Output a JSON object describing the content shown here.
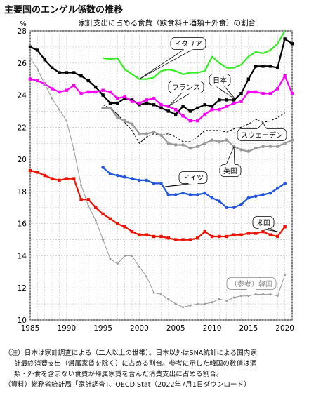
{
  "page_title": "主要国のエンゲル係数の推移",
  "chart_data": {
    "type": "line",
    "title": "家計支出に占める食費（飲食料＋酒類＋外食）の割合",
    "ylabel": "%",
    "xlim": [
      1985,
      2021
    ],
    "ylim": [
      10,
      28
    ],
    "xticks": [
      1985,
      1990,
      1995,
      2000,
      2005,
      2010,
      2015,
      2020
    ],
    "yticks": [
      10,
      12,
      14,
      16,
      18,
      20,
      22,
      24,
      26,
      28
    ],
    "grid": true,
    "colors": {
      "italy": "#33ee22",
      "japan": "#000000",
      "france": "#ff00ff",
      "sweden": "#000000",
      "uk": "#999999",
      "germany": "#2255dd",
      "usa": "#ee1100",
      "korea": "#9a9a9a"
    },
    "series": [
      {
        "key": "italy",
        "name": "イタリア",
        "color": "#33ee22",
        "style": "solid",
        "width": 2.2,
        "x": [
          1995,
          1996,
          1997,
          1998,
          1999,
          2000,
          2001,
          2002,
          2003,
          2004,
          2005,
          2006,
          2007,
          2008,
          2009,
          2010,
          2011,
          2012,
          2013,
          2014,
          2015,
          2016,
          2017,
          2018,
          2019,
          2020
        ],
        "y": [
          26.3,
          26.25,
          26.3,
          25.6,
          25.3,
          25.0,
          25.0,
          25.1,
          25.5,
          25.6,
          25.5,
          25.3,
          25.4,
          25.4,
          25.5,
          26.4,
          26.0,
          25.7,
          25.7,
          25.9,
          26.4,
          26.7,
          26.6,
          26.8,
          27.2,
          28.0
        ]
      },
      {
        "key": "japan",
        "name": "日本",
        "color": "#000000",
        "style": "solid",
        "width": 2.2,
        "marker": "square",
        "x": [
          1985,
          1986,
          1987,
          1988,
          1989,
          1990,
          1991,
          1992,
          1993,
          1994,
          1995,
          1996,
          1997,
          1998,
          1999,
          2000,
          2001,
          2002,
          2003,
          2004,
          2005,
          2006,
          2007,
          2008,
          2009,
          2010,
          2011,
          2012,
          2013,
          2014,
          2015,
          2016,
          2017,
          2018,
          2019,
          2020,
          2021
        ],
        "y": [
          27.0,
          26.8,
          26.2,
          25.7,
          25.4,
          25.4,
          25.4,
          25.2,
          24.9,
          24.5,
          24.0,
          23.5,
          23.5,
          23.8,
          23.7,
          23.4,
          23.5,
          23.4,
          23.2,
          23.0,
          22.8,
          23.3,
          23.0,
          23.2,
          23.4,
          23.3,
          23.7,
          23.7,
          23.7,
          24.1,
          25.0,
          25.8,
          25.8,
          25.8,
          25.7,
          27.5,
          27.2
        ]
      },
      {
        "key": "france",
        "name": "フランス",
        "color": "#ff00ff",
        "style": "solid",
        "width": 2.2,
        "marker": "square",
        "x": [
          1985,
          1986,
          1987,
          1988,
          1989,
          1990,
          1991,
          1992,
          1993,
          1994,
          1995,
          1996,
          1997,
          1998,
          1999,
          2000,
          2001,
          2002,
          2003,
          2004,
          2005,
          2006,
          2007,
          2008,
          2009,
          2010,
          2011,
          2012,
          2013,
          2014,
          2015,
          2016,
          2017,
          2018,
          2019,
          2020,
          2021
        ],
        "y": [
          25.0,
          24.9,
          24.7,
          24.4,
          24.2,
          24.3,
          24.6,
          24.1,
          24.2,
          24.2,
          24.3,
          24.2,
          23.8,
          23.9,
          23.6,
          23.5,
          23.7,
          23.8,
          23.4,
          23.3,
          23.1,
          22.7,
          22.4,
          22.4,
          22.8,
          23.1,
          23.1,
          23.3,
          23.5,
          23.6,
          24.2,
          24.2,
          24.1,
          24.1,
          24.4,
          25.2,
          24.1
        ]
      },
      {
        "key": "sweden",
        "name": "スウェーデン",
        "color": "#000000",
        "style": "dashed",
        "width": 1.0,
        "x": [
          1995,
          1996,
          1997,
          1998,
          1999,
          2000,
          2001,
          2002,
          2003,
          2004,
          2005,
          2006,
          2007,
          2008,
          2009,
          2010,
          2011,
          2012,
          2013,
          2014,
          2015,
          2016,
          2017,
          2018,
          2019,
          2020
        ],
        "y": [
          23.4,
          23.2,
          22.8,
          22.3,
          21.8,
          21.0,
          21.4,
          21.6,
          21.5,
          21.6,
          21.4,
          21.1,
          21.1,
          21.4,
          21.8,
          21.8,
          21.8,
          21.7,
          21.9,
          22.0,
          22.2,
          22.5,
          22.3,
          22.4,
          22.6,
          22.9
        ]
      },
      {
        "key": "uk",
        "name": "英国",
        "color": "#999999",
        "style": "solid",
        "width": 2.2,
        "marker": "dot",
        "x": [
          1995,
          1996,
          1997,
          1998,
          1999,
          2000,
          2001,
          2002,
          2003,
          2004,
          2005,
          2006,
          2007,
          2008,
          2009,
          2010,
          2011,
          2012,
          2013,
          2014,
          2015,
          2016,
          2017,
          2018,
          2019,
          2020,
          2021
        ],
        "y": [
          23.2,
          23.2,
          22.6,
          22.4,
          22.2,
          21.6,
          21.6,
          21.7,
          21.5,
          21.0,
          20.9,
          20.9,
          20.7,
          20.8,
          21.0,
          21.2,
          21.1,
          21.2,
          20.8,
          20.6,
          20.5,
          20.7,
          20.8,
          20.8,
          20.8,
          21.0,
          21.2
        ]
      },
      {
        "key": "germany",
        "name": "ドイツ",
        "color": "#2255dd",
        "style": "solid",
        "width": 2.2,
        "marker": "dot",
        "x": [
          1995,
          1996,
          1997,
          1998,
          1999,
          2000,
          2001,
          2002,
          2003,
          2004,
          2005,
          2006,
          2007,
          2008,
          2009,
          2010,
          2011,
          2012,
          2013,
          2014,
          2015,
          2016,
          2017,
          2018,
          2019,
          2020
        ],
        "y": [
          19.5,
          19.1,
          19.0,
          18.9,
          18.8,
          18.7,
          18.7,
          18.5,
          18.5,
          17.8,
          17.8,
          17.9,
          17.8,
          17.8,
          17.9,
          17.6,
          17.4,
          17.0,
          17.0,
          17.2,
          17.6,
          17.7,
          17.8,
          17.9,
          18.2,
          18.5
        ]
      },
      {
        "key": "usa",
        "name": "米国",
        "color": "#ee1100",
        "style": "solid",
        "width": 2.2,
        "marker": "square",
        "x": [
          1985,
          1986,
          1987,
          1988,
          1989,
          1990,
          1991,
          1992,
          1993,
          1994,
          1995,
          1996,
          1997,
          1998,
          1999,
          2000,
          2001,
          2002,
          2003,
          2004,
          2005,
          2006,
          2007,
          2008,
          2009,
          2010,
          2011,
          2012,
          2013,
          2014,
          2015,
          2016,
          2017,
          2018,
          2019,
          2020
        ],
        "y": [
          19.3,
          19.2,
          19.0,
          18.8,
          18.7,
          18.8,
          18.8,
          17.5,
          17.5,
          17.0,
          16.6,
          16.3,
          16.0,
          15.8,
          15.5,
          15.3,
          15.3,
          15.2,
          15.2,
          15.1,
          15.0,
          15.0,
          15.0,
          15.1,
          15.5,
          15.2,
          15.2,
          15.2,
          15.3,
          15.3,
          15.4,
          15.4,
          15.5,
          15.3,
          15.2,
          15.8
        ]
      },
      {
        "key": "korea",
        "name": "（参考）韓国",
        "color": "#9a9a9a",
        "style": "solid",
        "width": 1.0,
        "marker": "dot",
        "x": [
          1985,
          1986,
          1987,
          1988,
          1989,
          1990,
          1991,
          1992,
          1993,
          1994,
          1995,
          1996,
          1997,
          1998,
          1999,
          2000,
          2001,
          2002,
          2003,
          2004,
          2005,
          2006,
          2007,
          2008,
          2009,
          2010,
          2011,
          2012,
          2013,
          2014,
          2015,
          2016,
          2017,
          2018,
          2019,
          2020
        ],
        "y": [
          26.3,
          25.6,
          24.7,
          23.8,
          23.1,
          22.4,
          20.6,
          18.4,
          17.1,
          16.2,
          15.0,
          13.8,
          13.5,
          14.0,
          14.0,
          13.3,
          12.7,
          11.7,
          11.6,
          11.3,
          11.0,
          10.8,
          10.9,
          11.0,
          11.0,
          11.1,
          11.3,
          11.2,
          11.4,
          11.5,
          11.5,
          11.6,
          11.6,
          11.6,
          11.5,
          12.8
        ]
      }
    ],
    "series_labels": [
      "イタリア",
      "日本",
      "フランス",
      "スウェーデン",
      "英国",
      "ドイツ",
      "米国",
      "（参考）韓国"
    ]
  },
  "notes": [
    "（注）日本は家計調査による（二人以上の世帯）。日本以外はSNA統計による国内家",
    "計最終消費支出（帰属家賃を除く）に占める割合。参考に示した韓国の数値は酒",
    "類・外食を含まない食費が帰属家賃を含んだ消費支出に占める割合。",
    "（資料）総務省統計局「家計調査」、OECD.Stat（2022年7月1日ダウンロード）"
  ]
}
